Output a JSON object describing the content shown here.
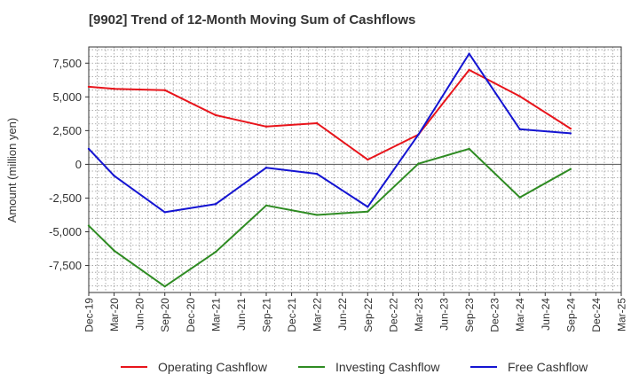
{
  "chart_data": {
    "type": "line",
    "title": "[9902]  Trend of 12-Month Moving Sum of Cashflows",
    "xlabel": "",
    "ylabel": "Amount (million yen)",
    "ylim": [
      -9500,
      8700
    ],
    "yticks": [
      7500,
      5000,
      2500,
      0,
      -2500,
      -5000,
      -7500
    ],
    "ytick_labels": [
      "7,500",
      "5,000",
      "2,500",
      "0",
      "-2,500",
      "-5,000",
      "-7,500"
    ],
    "categories": [
      "Dec-19",
      "Mar-20",
      "Jun-20",
      "Sep-20",
      "Dec-20",
      "Mar-21",
      "Jun-21",
      "Sep-21",
      "Dec-21",
      "Mar-22",
      "Jun-22",
      "Sep-22",
      "Dec-22",
      "Mar-23",
      "Jun-23",
      "Sep-23",
      "Dec-23",
      "Mar-24",
      "Jun-24",
      "Sep-24",
      "Dec-24",
      "Mar-25"
    ],
    "grid": true,
    "legend_position": "bottom",
    "series": [
      {
        "name": "Operating Cashflow",
        "color": "#e8141b",
        "values": [
          5750,
          5600,
          null,
          5500,
          null,
          3650,
          null,
          2800,
          null,
          3050,
          null,
          350,
          null,
          2200,
          null,
          7000,
          null,
          5050,
          null,
          2650,
          null,
          null
        ]
      },
      {
        "name": "Investing Cashflow",
        "color": "#2e8b22",
        "values": [
          -4550,
          -6400,
          null,
          -9050,
          null,
          -6500,
          null,
          -3050,
          null,
          -3750,
          null,
          -3500,
          null,
          50,
          null,
          1150,
          null,
          -2450,
          null,
          -350,
          null,
          null
        ]
      },
      {
        "name": "Free Cashflow",
        "color": "#1414d2",
        "values": [
          1150,
          -850,
          null,
          -3550,
          null,
          -2950,
          null,
          -250,
          null,
          -700,
          null,
          -3150,
          null,
          2200,
          null,
          8200,
          null,
          2600,
          null,
          2300,
          null,
          null
        ]
      }
    ]
  }
}
